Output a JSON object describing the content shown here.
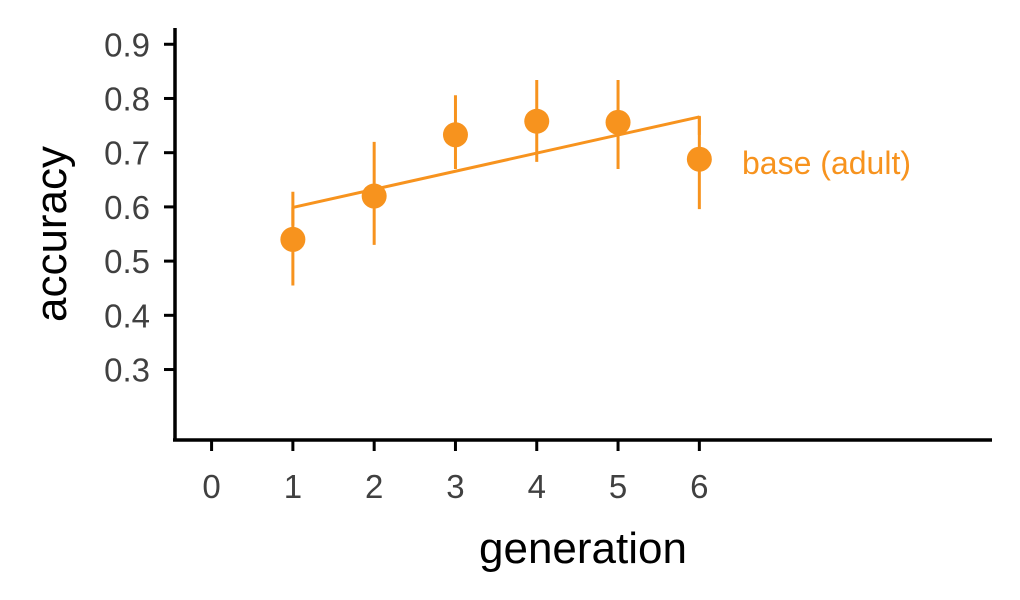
{
  "chart_data": {
    "type": "scatter",
    "title": "",
    "xlabel": "generation",
    "ylabel": "accuracy",
    "xlim": [
      -0.45,
      9.6
    ],
    "ylim": [
      0.17,
      0.93
    ],
    "x_ticks": [
      0,
      1,
      2,
      3,
      4,
      5,
      6
    ],
    "y_ticks": [
      0.3,
      0.4,
      0.5,
      0.6,
      0.7,
      0.8,
      0.9
    ],
    "x_tick_labels": [
      "0",
      "1",
      "2",
      "3",
      "4",
      "5",
      "6"
    ],
    "y_tick_labels": [
      "0.3",
      "0.4",
      "0.5",
      "0.6",
      "0.7",
      "0.8",
      "0.9"
    ],
    "grid": false,
    "color": "#F7931E",
    "series": [
      {
        "name": "base (adult)",
        "x": [
          1,
          2,
          3,
          4,
          5,
          6
        ],
        "y": [
          0.54,
          0.62,
          0.733,
          0.758,
          0.756,
          0.688
        ],
        "error_low": [
          0.455,
          0.53,
          0.67,
          0.683,
          0.67,
          0.596
        ],
        "error_high": [
          0.628,
          0.72,
          0.806,
          0.834,
          0.834,
          0.768
        ],
        "trend": {
          "x": [
            1,
            6
          ],
          "y": [
            0.599,
            0.766
          ]
        }
      }
    ]
  }
}
